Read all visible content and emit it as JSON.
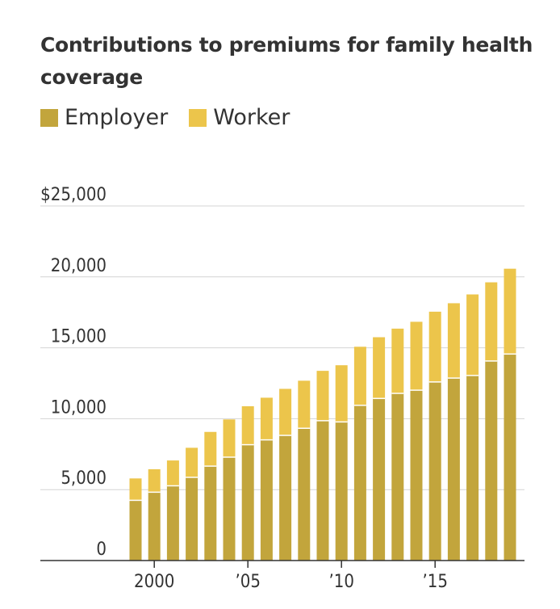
{
  "chart_data": {
    "type": "bar",
    "stacked": true,
    "title": "Contributions to premiums for family health coverage",
    "x": [
      1999,
      2000,
      2001,
      2002,
      2003,
      2004,
      2005,
      2006,
      2007,
      2008,
      2009,
      2010,
      2011,
      2012,
      2013,
      2014,
      2015,
      2016,
      2017,
      2018,
      2019
    ],
    "series": [
      {
        "name": "Employer",
        "color": "#c2a53c",
        "values": [
          4247,
          4819,
          5269,
          5866,
          6657,
          7289,
          8167,
          8508,
          8824,
          9325,
          9860,
          9773,
          10944,
          11429,
          11786,
          12011,
          12591,
          12865,
          13049,
          14069,
          14561
        ]
      },
      {
        "name": "Worker",
        "color": "#ecc54b",
        "values": [
          1543,
          1619,
          1787,
          2084,
          2412,
          2661,
          2713,
          2973,
          3281,
          3354,
          3515,
          3997,
          4129,
          4316,
          4565,
          4823,
          4955,
          5277,
          5714,
          5547,
          6015
        ]
      }
    ],
    "ylim": [
      0,
      25000
    ],
    "yticks": [
      0,
      5000,
      10000,
      15000,
      20000,
      25000
    ],
    "ytick_labels": [
      "0",
      "5,000",
      "10,000",
      "15,000",
      "20,000",
      "$25,000"
    ],
    "xticks": [
      2000,
      2005,
      2010,
      2015
    ],
    "xtick_labels": [
      "2000",
      "’05",
      "’10",
      "’15"
    ],
    "xlabel": "",
    "ylabel": "",
    "legend_position": "top-left",
    "grid": true
  }
}
